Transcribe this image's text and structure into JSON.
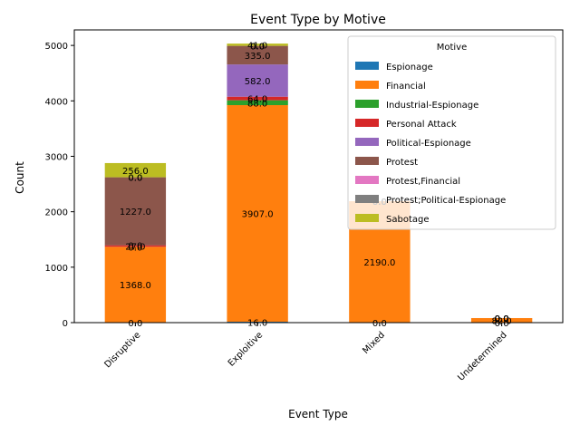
{
  "chart_data": {
    "type": "bar",
    "stacked": true,
    "title": "Event Type by Motive",
    "xlabel": "Event Type",
    "ylabel": "Count",
    "categories": [
      "Disruptive",
      "Exploitive",
      "Mixed",
      "Undetermined"
    ],
    "ylim": [
      0,
      5280
    ],
    "yticks": [
      0,
      1000,
      2000,
      3000,
      4000,
      5000
    ],
    "legend": {
      "title": "Motive",
      "position": "top-right"
    },
    "series": [
      {
        "name": "Espionage",
        "color": "#1f77b4",
        "values": [
          0,
          16,
          0,
          0
        ]
      },
      {
        "name": "Financial",
        "color": "#ff7f0e",
        "values": [
          1368,
          3907,
          2190,
          82
        ]
      },
      {
        "name": "Industrial-Espionage",
        "color": "#2ca02c",
        "values": [
          0,
          88,
          0,
          0
        ]
      },
      {
        "name": "Personal Attack",
        "color": "#d62728",
        "values": [
          27,
          64,
          0,
          0
        ]
      },
      {
        "name": "Political-Espionage",
        "color": "#9467bd",
        "values": [
          0,
          582,
          0,
          0
        ]
      },
      {
        "name": "Protest",
        "color": "#8c564b",
        "values": [
          1227,
          335,
          0,
          0
        ]
      },
      {
        "name": "Protest,Financial",
        "color": "#e377c2",
        "values": [
          0,
          0,
          0,
          0
        ]
      },
      {
        "name": "Protest;Political-Espionage",
        "color": "#7f7f7f",
        "values": [
          0,
          0,
          0,
          0
        ]
      },
      {
        "name": "Sabotage",
        "color": "#bcbd22",
        "values": [
          256,
          41,
          0,
          0
        ]
      }
    ]
  }
}
